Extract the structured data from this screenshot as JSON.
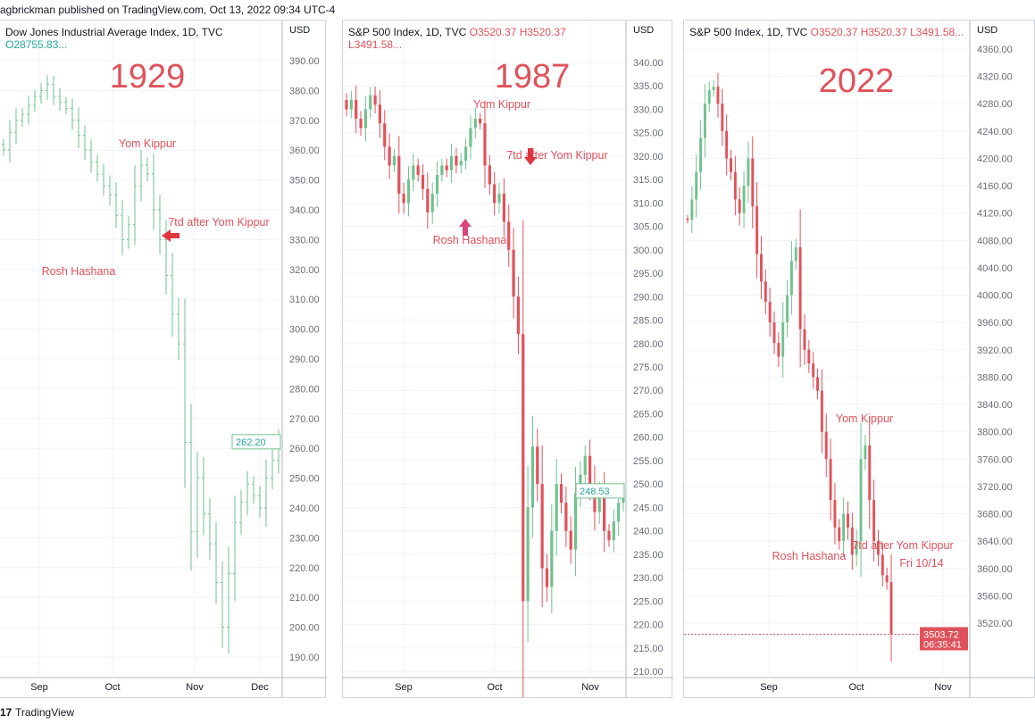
{
  "published": "agbrickman published on TradingView.com, Oct 13, 2022 09:34 UTC-4",
  "footer": {
    "logo": "17",
    "brand": "TradingView"
  },
  "colors": {
    "up": "#72c18f",
    "down": "#e0525b",
    "text_red": "#e0525b"
  },
  "chart_data": [
    {
      "type": "candlestick",
      "title": "Dow Jones Industrial Average Index, 1D, TVC",
      "ohlc_label": "O28755.83...",
      "currency": "USD",
      "year_label": "1929",
      "yticks": [
        390,
        380,
        370,
        360,
        350,
        340,
        330,
        320,
        310,
        300,
        290,
        280,
        270,
        260,
        250,
        240,
        230,
        220,
        210,
        200,
        190
      ],
      "ylim": [
        185,
        395
      ],
      "xticks": [
        "Sep",
        "Oct",
        "Nov",
        "Dec"
      ],
      "last_price": "262.20",
      "closes": [
        360,
        366,
        370,
        372,
        375,
        378,
        380,
        382,
        378,
        376,
        374,
        370,
        365,
        360,
        356,
        352,
        348,
        345,
        338,
        330,
        335,
        348,
        355,
        352,
        340,
        330,
        318,
        305,
        295,
        262,
        232,
        250,
        238,
        228,
        215,
        200,
        218,
        235,
        242,
        248,
        244,
        240,
        250,
        256,
        262
      ],
      "annotations": [
        "Yom Kippur",
        "7td after Yom Kippur",
        "Rosh Hashana"
      ]
    },
    {
      "type": "candlestick",
      "title": "S&P 500 Index, 1D, TVC",
      "ohlc_label": [
        "O3520.37",
        "H3520.37",
        "L3491.58..."
      ],
      "currency": "USD",
      "year_label": "1987",
      "yticks": [
        340,
        335,
        330,
        325,
        320,
        315,
        310,
        305,
        300,
        295,
        290,
        285,
        280,
        275,
        270,
        265,
        260,
        255,
        250,
        245,
        240,
        235,
        230,
        225,
        220,
        215,
        210
      ],
      "ylim": [
        208,
        342
      ],
      "xticks": [
        "Sep",
        "Oct",
        "Nov"
      ],
      "last_price": "248.53",
      "closes": [
        330,
        332,
        328,
        326,
        330,
        333,
        331,
        327,
        322,
        318,
        320,
        312,
        310,
        315,
        318,
        316,
        313,
        308,
        312,
        316,
        318,
        317,
        320,
        318,
        319,
        322,
        326,
        328,
        327,
        318,
        314,
        310,
        312,
        306,
        300,
        290,
        282,
        225,
        245,
        258,
        250,
        232,
        228,
        240,
        250,
        246,
        240,
        236,
        248,
        252,
        256,
        250,
        244,
        248,
        240,
        238,
        242,
        246,
        248.5
      ],
      "annotations": [
        "Yom Kippur",
        "7td after Yom Kippur",
        "Rosh Hashana"
      ]
    },
    {
      "type": "candlestick",
      "title": "S&P 500 Index, 1D, TVC",
      "ohlc_label": [
        "O3520.37",
        "H3520.37",
        "L3491.58..."
      ],
      "currency": "USD",
      "year_label": "2022",
      "yticks": [
        4360,
        4320,
        4280,
        4240,
        4200,
        4160,
        4120,
        4080,
        4040,
        4000,
        3960,
        3920,
        3880,
        3840,
        3800,
        3760,
        3720,
        3680,
        3640,
        3600,
        3560,
        3520
      ],
      "ylim": [
        3460,
        4380
      ],
      "xticks": [
        "Sep",
        "Oct",
        "Nov"
      ],
      "last_price": "3503.72",
      "countdown": "06:35:41",
      "closes": [
        4110,
        4140,
        4180,
        4230,
        4280,
        4300,
        4305,
        4280,
        4240,
        4200,
        4180,
        4140,
        4120,
        4160,
        4200,
        4130,
        4060,
        4020,
        3990,
        3960,
        3930,
        3910,
        3960,
        4000,
        4050,
        4070,
        3950,
        3920,
        3900,
        3880,
        3860,
        3800,
        3760,
        3700,
        3660,
        3640,
        3680,
        3660,
        3620,
        3640,
        3760,
        3780,
        3700,
        3640,
        3620,
        3590,
        3580,
        3504
      ],
      "annotations": [
        "Yom Kippur",
        "7td after Yom Kippur",
        "Fri 10/14",
        "Rosh Hashana"
      ]
    }
  ]
}
